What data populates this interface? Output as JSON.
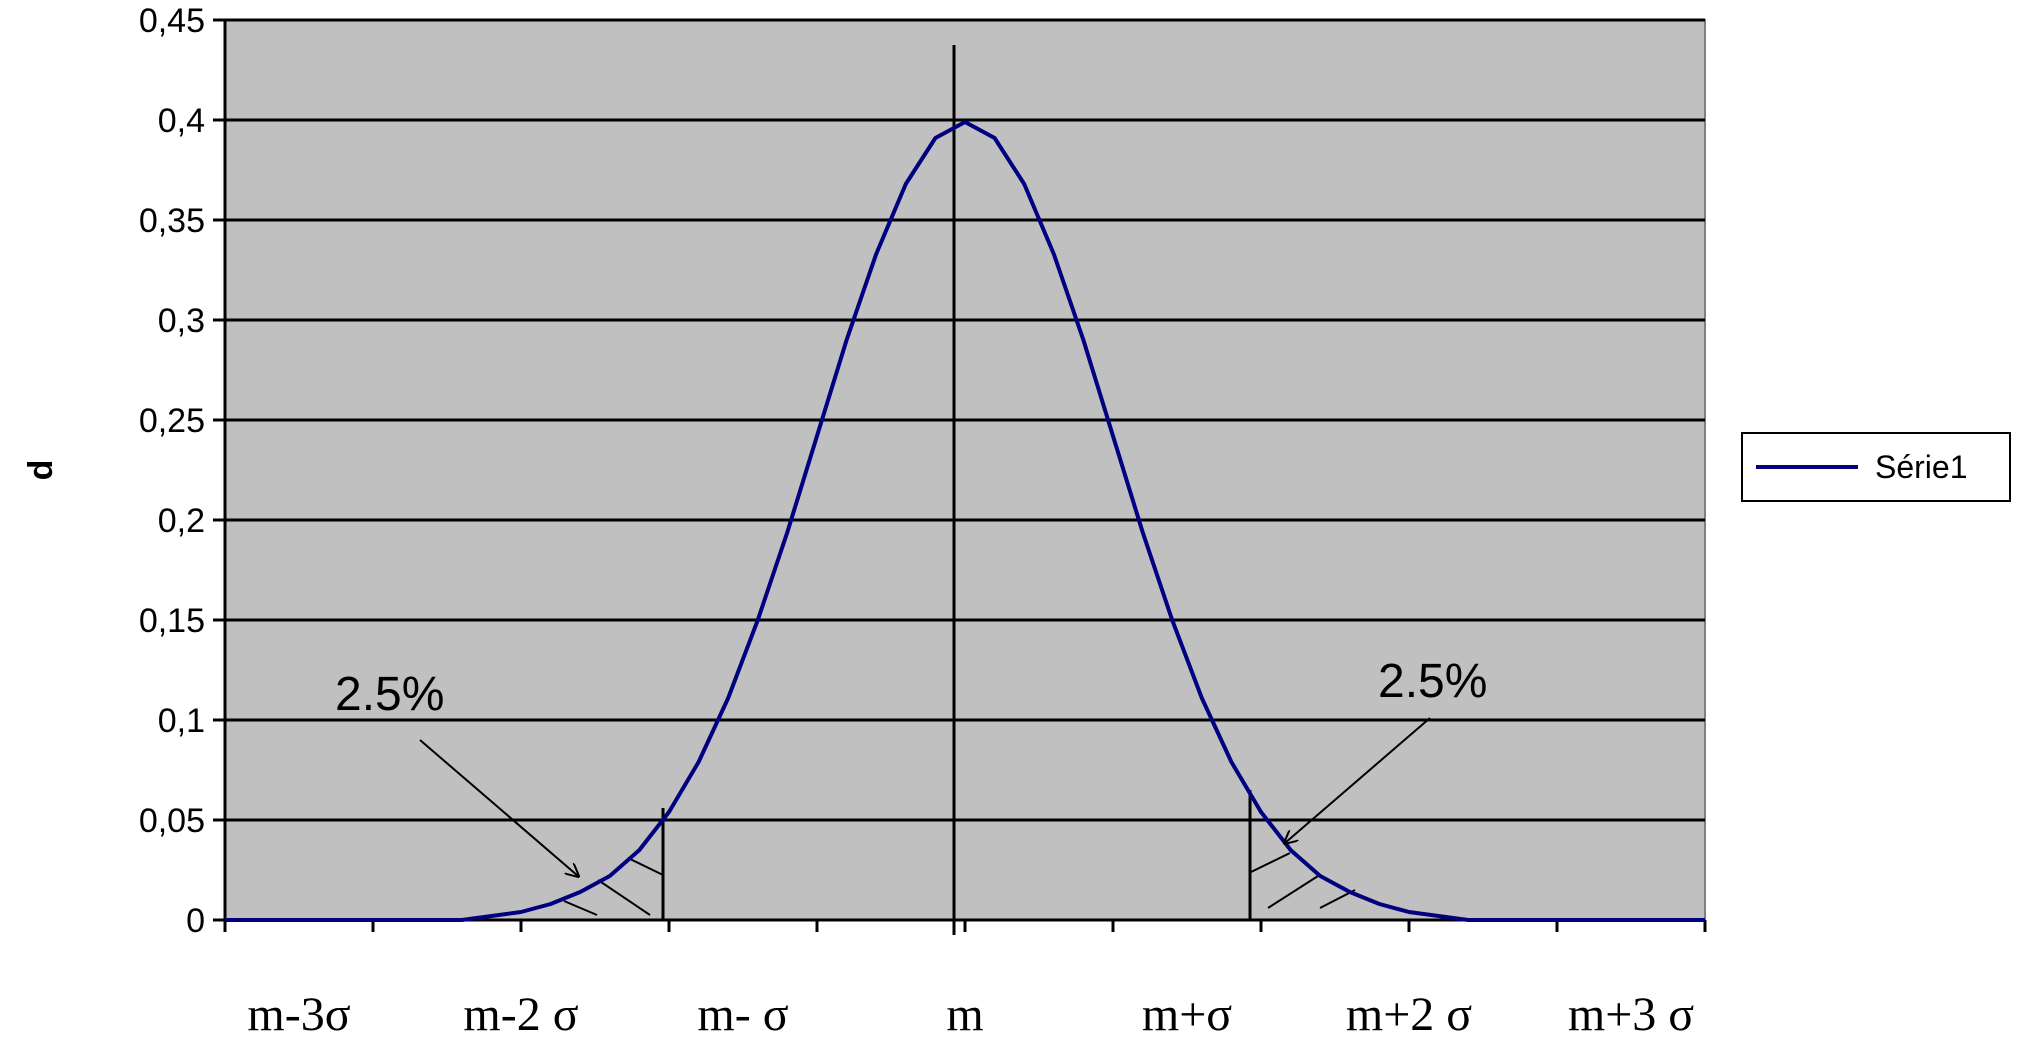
{
  "chart_data": {
    "type": "line",
    "title": "",
    "xlabel": "",
    "ylabel": "d",
    "ylim": [
      0,
      0.45
    ],
    "yticks": [
      "0",
      "0,05",
      "0,1",
      "0,15",
      "0,2",
      "0,25",
      "0,3",
      "0,35",
      "0,4",
      "0,45"
    ],
    "xlim": [
      -5,
      5
    ],
    "x_category_labels": [
      "m-3σ",
      "m-2 σ",
      "m- σ",
      "m",
      "m+σ",
      "m+2 σ",
      "m+3 σ"
    ],
    "grid": true,
    "legend_position": "right",
    "series": [
      {
        "name": "Série1",
        "color": "#000080",
        "x": [
          -5.0,
          -4.8,
          -4.6,
          -4.4,
          -4.2,
          -4.0,
          -3.8,
          -3.6,
          -3.4,
          -3.2,
          -3.0,
          -2.8,
          -2.6,
          -2.4,
          -2.2,
          -2.0,
          -1.8,
          -1.6,
          -1.4,
          -1.2,
          -1.0,
          -0.8,
          -0.6,
          -0.4,
          -0.2,
          0.0,
          0.2,
          0.4,
          0.6,
          0.8,
          1.0,
          1.2,
          1.4,
          1.6,
          1.8,
          2.0,
          2.2,
          2.4,
          2.6,
          2.8,
          3.0,
          3.2,
          3.4,
          3.6,
          3.8,
          4.0,
          4.2,
          4.4,
          4.6,
          4.8,
          5.0
        ],
        "y": [
          0.0,
          0.0,
          0.0,
          0.0,
          0.0,
          0.0,
          0.0,
          0.0,
          0.0,
          0.002,
          0.004,
          0.008,
          0.014,
          0.022,
          0.035,
          0.054,
          0.079,
          0.111,
          0.15,
          0.194,
          0.242,
          0.29,
          0.333,
          0.368,
          0.391,
          0.399,
          0.391,
          0.368,
          0.333,
          0.29,
          0.242,
          0.194,
          0.15,
          0.111,
          0.079,
          0.054,
          0.035,
          0.022,
          0.014,
          0.008,
          0.004,
          0.002,
          0.0,
          0.0,
          0.0,
          0.0,
          0.0,
          0.0,
          0.0,
          0.0,
          0.0
        ]
      }
    ],
    "annotations": [
      {
        "text": "2.5%",
        "side": "left"
      },
      {
        "text": "2.5%",
        "side": "right"
      }
    ]
  },
  "colors": {
    "plot_background": "#c0c0c0",
    "gridline": "#000000",
    "series_line": "#000080"
  }
}
